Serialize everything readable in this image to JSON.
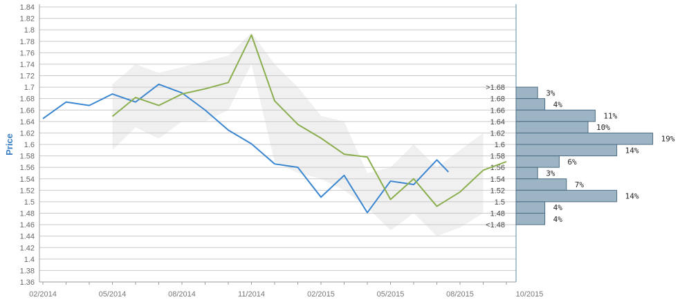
{
  "chart_data": {
    "type": "line",
    "ylabel": "Price",
    "ylim": [
      1.36,
      1.84
    ],
    "y_ticks": [
      "1.84",
      "1.82",
      "1.8",
      "1.78",
      "1.76",
      "1.74",
      "1.72",
      "1.7",
      "1.68",
      "1.66",
      "1.64",
      "1.62",
      "1.6",
      "1.58",
      "1.56",
      "1.54",
      "1.52",
      "1.5",
      "1.48",
      "1.46",
      "1.44",
      "1.42",
      "1.4",
      "1.38",
      "1.36"
    ],
    "x_ticks": [
      "02/2014",
      "05/2014",
      "08/2014",
      "11/2014",
      "02/2015",
      "05/2015",
      "08/2015",
      "10/2015"
    ],
    "grid": true,
    "series": [
      {
        "color": "#3a85d0",
        "x": [
          "2014-02",
          "2014-03",
          "2014-04",
          "2014-05",
          "2014-06",
          "2014-07",
          "2014-08",
          "2014-09",
          "2014-10",
          "2014-11",
          "2014-12",
          "2015-01",
          "2015-02",
          "2015-03",
          "2015-04",
          "2015-05",
          "2015-06",
          "2015-07",
          "2015-07.5"
        ],
        "values": [
          1.645,
          1.674,
          1.668,
          1.688,
          1.674,
          1.705,
          1.69,
          1.66,
          1.625,
          1.601,
          1.566,
          1.56,
          1.508,
          1.546,
          1.481,
          1.536,
          1.53,
          1.573,
          1.552
        ]
      },
      {
        "color": "#8aae4e",
        "x": [
          "2014-05",
          "2014-06",
          "2014-07",
          "2014-08",
          "2014-09",
          "2014-10",
          "2014-11",
          "2014-12",
          "2015-01",
          "2015-02",
          "2015-03",
          "2015-04",
          "2015-05",
          "2015-06",
          "2015-07",
          "2015-08",
          "2015-09",
          "2015-10"
        ],
        "values": [
          1.649,
          1.682,
          1.668,
          1.688,
          1.697,
          1.708,
          1.791,
          1.676,
          1.635,
          1.611,
          1.583,
          1.578,
          1.504,
          1.54,
          1.492,
          1.517,
          1.555,
          1.57
        ]
      }
    ],
    "band": {
      "color": "#f0f0f0",
      "upper": [
        [
          3,
          1.705
        ],
        [
          4,
          1.74
        ],
        [
          5,
          1.725
        ],
        [
          6,
          1.735
        ],
        [
          7,
          1.745
        ],
        [
          8,
          1.755
        ],
        [
          9,
          1.795
        ],
        [
          10,
          1.74
        ],
        [
          11,
          1.7
        ],
        [
          12,
          1.65
        ],
        [
          13,
          1.64
        ],
        [
          14,
          1.55
        ],
        [
          15,
          1.56
        ],
        [
          16,
          1.6
        ],
        [
          17,
          1.56
        ],
        [
          18,
          1.59
        ],
        [
          19,
          1.62
        ]
      ],
      "lower": [
        [
          3,
          1.59
        ],
        [
          4,
          1.63
        ],
        [
          5,
          1.61
        ],
        [
          6,
          1.64
        ],
        [
          7,
          1.64
        ],
        [
          8,
          1.66
        ],
        [
          9,
          1.74
        ],
        [
          10,
          1.57
        ],
        [
          11,
          1.55
        ],
        [
          12,
          1.54
        ],
        [
          13,
          1.52
        ],
        [
          14,
          1.49
        ],
        [
          15,
          1.45
        ],
        [
          16,
          1.48
        ],
        [
          17,
          1.44
        ],
        [
          18,
          1.455
        ],
        [
          19,
          1.48
        ]
      ]
    },
    "histogram": {
      "color": "#9db4c5",
      "bins": [
        {
          "label": ">1.68",
          "value": 1.69,
          "pct": 3,
          "pct_label": "3%"
        },
        {
          "label": "1.68",
          "value": 1.67,
          "pct": 4,
          "pct_label": "4%"
        },
        {
          "label": "1.66",
          "value": 1.65,
          "pct": 11,
          "pct_label": "11%"
        },
        {
          "label": "1.64",
          "value": 1.63,
          "pct": 10,
          "pct_label": "10%"
        },
        {
          "label": "1.62",
          "value": 1.61,
          "pct": 19,
          "pct_label": "19%"
        },
        {
          "label": "1.6",
          "value": 1.59,
          "pct": 14,
          "pct_label": "14%"
        },
        {
          "label": "1.58",
          "value": 1.57,
          "pct": 6,
          "pct_label": "6%"
        },
        {
          "label": "1.56",
          "value": 1.55,
          "pct": 3,
          "pct_label": "3%"
        },
        {
          "label": "1.54",
          "value": 1.53,
          "pct": 7,
          "pct_label": "7%"
        },
        {
          "label": "1.52",
          "value": 1.51,
          "pct": 14,
          "pct_label": "14%"
        },
        {
          "label": "1.5",
          "value": 1.49,
          "pct": 4,
          "pct_label": "4%"
        },
        {
          "label": "1.48",
          "value": 1.47,
          "pct": 4,
          "pct_label": "4%"
        },
        {
          "label": "<1.48",
          "value": 1.45,
          "pct": 0,
          "pct_label": ""
        }
      ]
    }
  }
}
